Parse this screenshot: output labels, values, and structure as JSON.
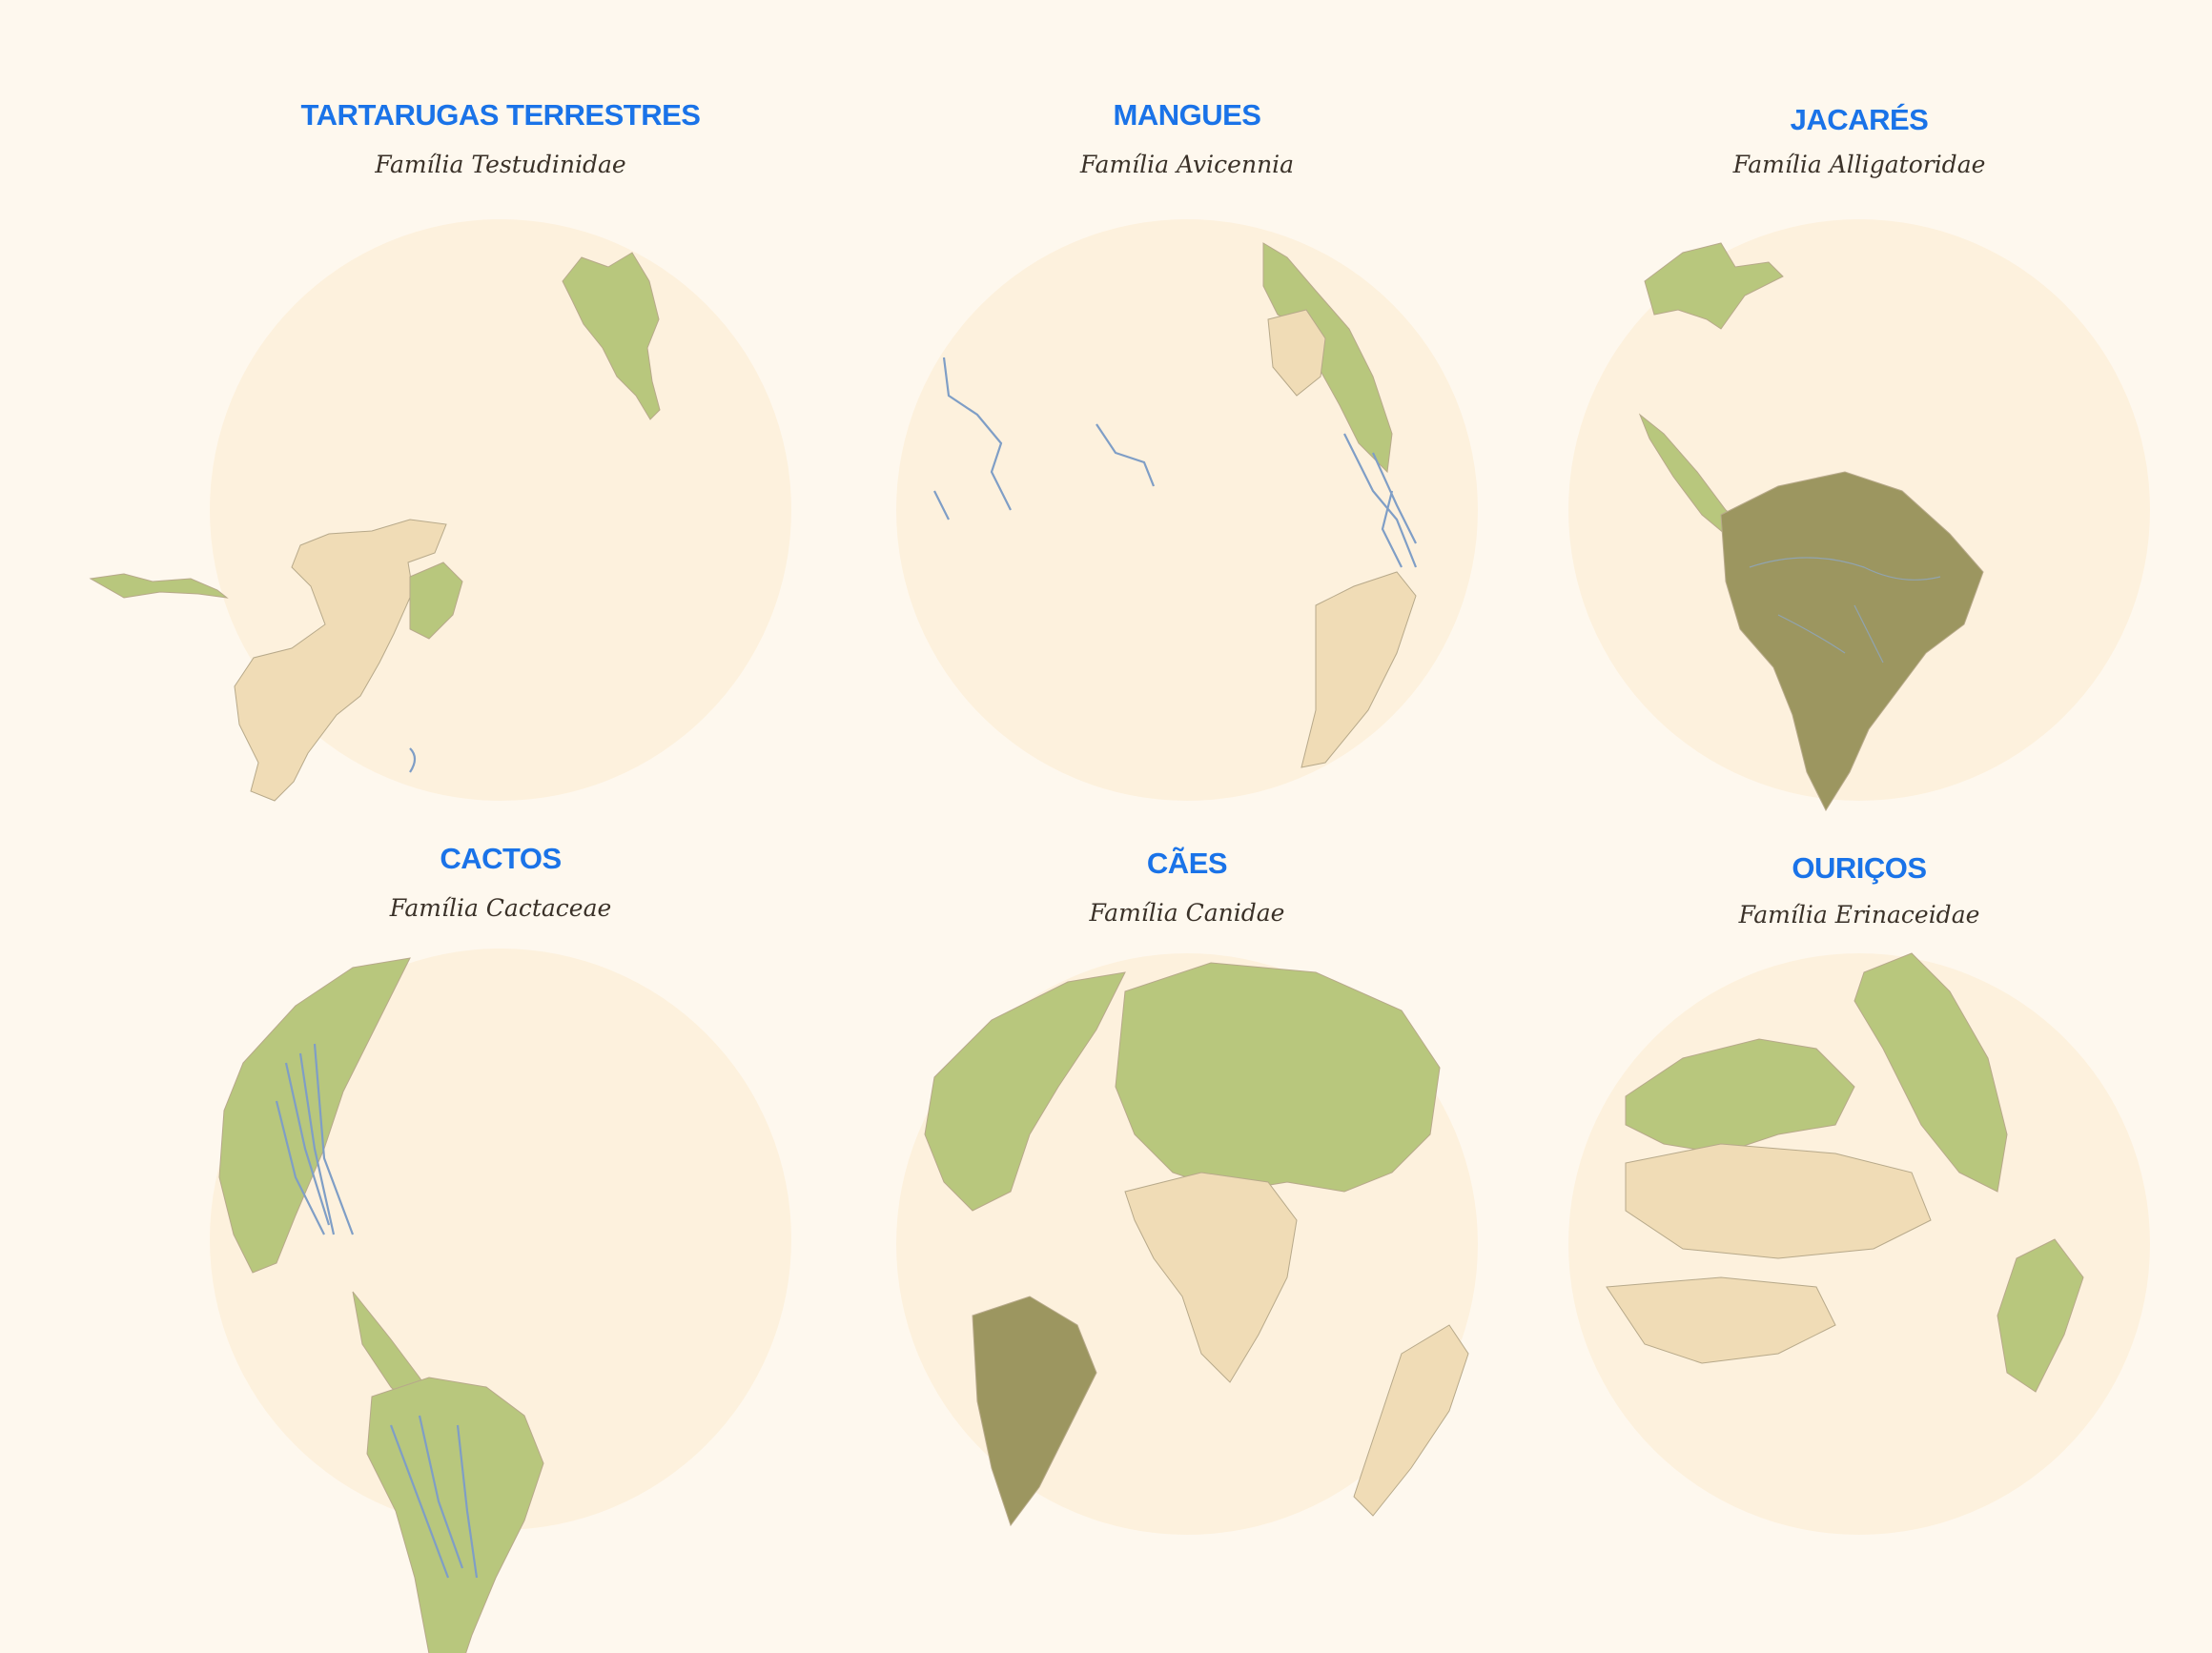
{
  "maps": [
    {
      "id": "tartarugas",
      "title": "TARTARUGAS TERRESTRES",
      "subtitle": "Família Testudinidae"
    },
    {
      "id": "mangues",
      "title": "MANGUES",
      "subtitle": "Família Avicennia"
    },
    {
      "id": "jacares",
      "title": "JACARÉS",
      "subtitle": "Família Alligatoridae"
    },
    {
      "id": "cactos",
      "title": "CACTOS",
      "subtitle": "Família Cactaceae"
    },
    {
      "id": "caes",
      "title": "CÃES",
      "subtitle": "Família Canidae"
    },
    {
      "id": "ouricos",
      "title": "OURIÇOS",
      "subtitle": "Família Erinaceidae"
    }
  ],
  "colors": {
    "background": "#fef8ee",
    "globe": "#fdf1dd",
    "title": "#1a73e8",
    "subtitle": "#3a3128",
    "vegetation": "#b8c77d",
    "desert": "#f0dcb6",
    "water_lines": "#7f9ec6"
  }
}
